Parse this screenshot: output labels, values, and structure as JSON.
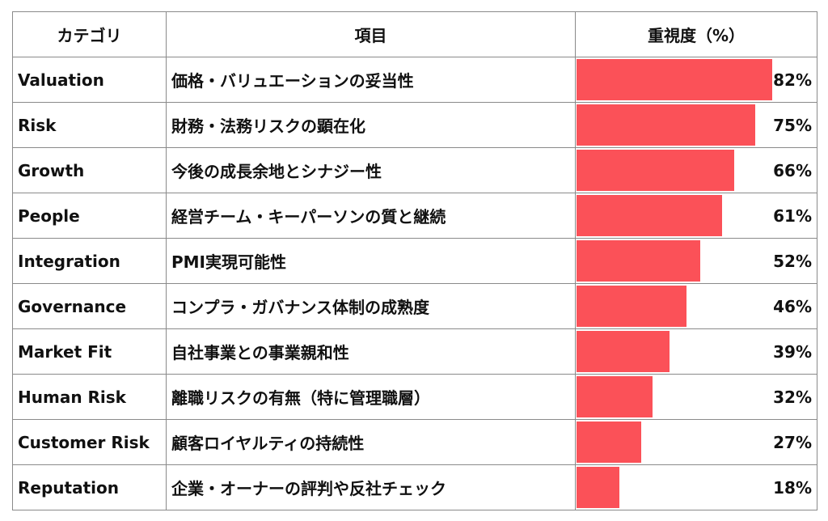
{
  "header": {
    "category": "カテゴリ",
    "item": "項目",
    "importance": "重視度（%）"
  },
  "colors": {
    "bar": "#fb5158",
    "border": "#8a8a8a"
  },
  "chart_data": {
    "type": "bar",
    "value_unit": "%",
    "xlim": [
      0,
      100
    ],
    "categories": [
      "Valuation",
      "Risk",
      "Growth",
      "People",
      "Integration",
      "Governance",
      "Market Fit",
      "Human Risk",
      "Customer Risk",
      "Reputation"
    ],
    "labels": [
      "価格・バリュエーションの妥当性",
      "財務・法務リスクの顕在化",
      "今後の成長余地とシナジー性",
      "経営チーム・キーパーソンの質と継続",
      "PMI実現可能性",
      "コンプラ・ガバナンス体制の成熟度",
      "自社事業との事業親和性",
      "離職リスクの有無（特に管理職層）",
      "顧客ロイヤルティの持続性",
      "企業・オーナーの評判や反社チェック"
    ],
    "values": [
      82,
      75,
      66,
      61,
      52,
      46,
      39,
      32,
      27,
      18
    ],
    "value_labels": [
      "82%",
      "75%",
      "66%",
      "61%",
      "52%",
      "46%",
      "39%",
      "32%",
      "27%",
      "18%"
    ]
  }
}
